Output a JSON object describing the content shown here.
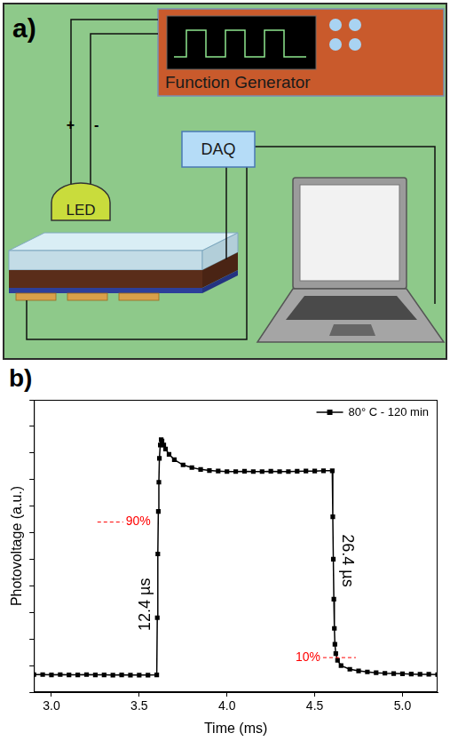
{
  "panel_labels": [
    "a)",
    "b)"
  ],
  "diagram": {
    "nodes": [
      {
        "label": "Function Generator"
      },
      {
        "label": "LED"
      },
      {
        "label": "DAQ"
      }
    ],
    "led_terminals": [
      "+",
      "-"
    ]
  },
  "chart_data": {
    "type": "line",
    "x_label": "Time (ms)",
    "y_label": "Photovoltage (a.u.)",
    "x": [
      2.9,
      2.95,
      3.0,
      3.05,
      3.1,
      3.15,
      3.2,
      3.25,
      3.3,
      3.35,
      3.4,
      3.45,
      3.5,
      3.55,
      3.6,
      3.603,
      3.606,
      3.609,
      3.612,
      3.615,
      3.62,
      3.625,
      3.63,
      3.64,
      3.65,
      3.67,
      3.7,
      3.75,
      3.8,
      3.85,
      3.9,
      3.95,
      4.0,
      4.05,
      4.1,
      4.15,
      4.2,
      4.25,
      4.3,
      4.35,
      4.4,
      4.45,
      4.5,
      4.55,
      4.6,
      4.603,
      4.606,
      4.609,
      4.612,
      4.615,
      4.62,
      4.63,
      4.65,
      4.7,
      4.75,
      4.8,
      4.85,
      4.9,
      4.95,
      5.0,
      5.05,
      5.1,
      5.15,
      5.2
    ],
    "series": [
      {
        "name": "80° C - 120 min",
        "color": "#000000",
        "marker": "square",
        "values": [
          0.66,
          0.66,
          0.65,
          0.66,
          0.65,
          0.65,
          0.66,
          0.65,
          0.65,
          0.64,
          0.65,
          0.64,
          0.64,
          0.64,
          0.65,
          2.8,
          5.2,
          6.8,
          7.9,
          8.8,
          9.3,
          9.5,
          9.45,
          9.3,
          9.15,
          8.95,
          8.75,
          8.55,
          8.45,
          8.38,
          8.34,
          8.32,
          8.3,
          8.3,
          8.31,
          8.3,
          8.3,
          8.31,
          8.3,
          8.3,
          8.31,
          8.32,
          8.32,
          8.33,
          8.33,
          6.6,
          5.0,
          3.5,
          2.4,
          1.8,
          1.45,
          1.2,
          1.0,
          0.86,
          0.8,
          0.76,
          0.73,
          0.71,
          0.7,
          0.69,
          0.68,
          0.67,
          0.67,
          0.66
        ]
      }
    ],
    "xlim": [
      2.9,
      5.2
    ],
    "xticks": [
      {
        "value": 3,
        "label": "3.0"
      },
      {
        "value": 3.5,
        "label": "3.5"
      },
      {
        "value": 4,
        "label": "4.0"
      },
      {
        "value": 4.5,
        "label": "4.5"
      },
      {
        "value": 5,
        "label": "5.0"
      }
    ],
    "ylim": [
      0,
      11
    ],
    "yticks": [
      0,
      1,
      2,
      3,
      4,
      5,
      6,
      7,
      8,
      9,
      10,
      11
    ],
    "tick_labels": "x",
    "grid": false,
    "legend": "upper right",
    "annotations": [
      {
        "text": "12.4 µs"
      },
      {
        "text": "26.4 µs"
      }
    ],
    "reference_levels": [
      {
        "label": "90%",
        "value": 6.4,
        "color": "#ff0000",
        "line_style": "dashed"
      },
      {
        "label": "10%",
        "value": 1.3,
        "color": "#ff0000",
        "line_style": "dashed"
      }
    ]
  }
}
